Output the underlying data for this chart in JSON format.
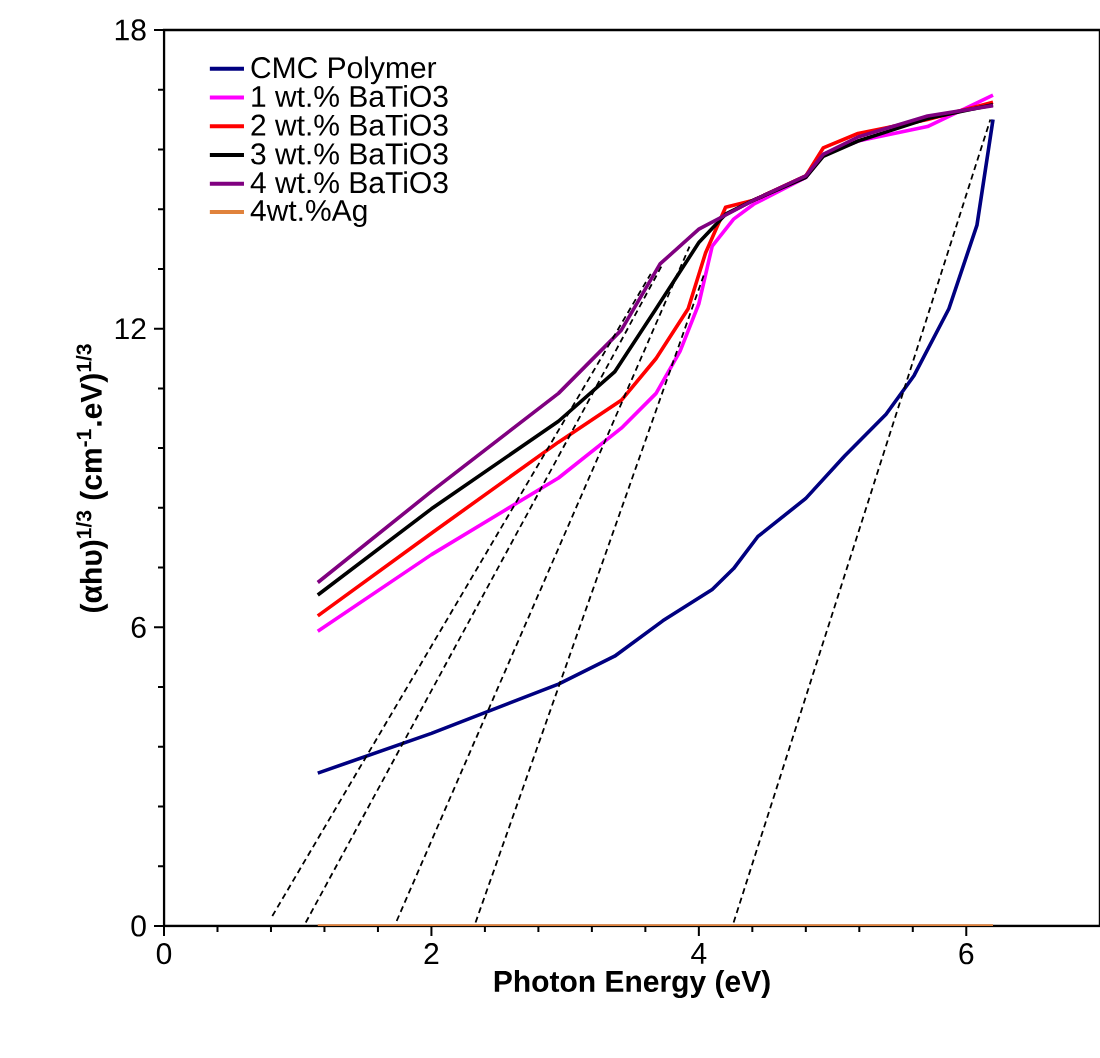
{
  "chart_data": {
    "type": "line",
    "xlabel": "Photon Energy (eV)",
    "ylabel": "(αhυ)$^{1/3}$ (cm$^{-1}$.eV)$^{1/3}$",
    "xlim": [
      0,
      7
    ],
    "ylim": [
      0,
      18
    ],
    "xticks": [
      0,
      2,
      4,
      6
    ],
    "yticks": [
      0,
      6,
      12,
      18
    ],
    "grid": false,
    "legend": "top left",
    "marker": "none",
    "series": [
      {
        "name": "CMC Polymer",
        "color": "#000080",
        "x": [
          1.15,
          2,
          2.95,
          3.37,
          3.73,
          4.1,
          4.26,
          4.44,
          4.8,
          5.09,
          5.4,
          5.61,
          5.87,
          6.08,
          6.2
        ],
        "values": [
          3.07,
          3.87,
          4.86,
          5.42,
          6.13,
          6.76,
          7.18,
          7.82,
          8.59,
          9.44,
          10.28,
          11.06,
          12.4,
          14.08,
          16.2
        ]
      },
      {
        "name": "1 wt.% BaTiO3",
        "color": "#ff00ff",
        "x": [
          1.15,
          2,
          2.95,
          3.42,
          3.68,
          3.86,
          4.0,
          4.1,
          4.26,
          4.41,
          4.8,
          4.93,
          5.19,
          5.71,
          6.2
        ],
        "values": [
          5.92,
          7.46,
          9.0,
          10.0,
          10.7,
          11.55,
          12.5,
          13.66,
          14.2,
          14.5,
          15.04,
          15.5,
          15.77,
          16.06,
          16.69
        ]
      },
      {
        "name": "2 wt.% BaTiO3",
        "color": "#ff0000",
        "x": [
          1.15,
          2,
          2.95,
          3.42,
          3.68,
          3.92,
          4.05,
          4.2,
          4.41,
          4.8,
          4.93,
          5.19,
          5.71,
          6.2
        ],
        "values": [
          6.23,
          7.89,
          9.72,
          10.56,
          11.4,
          12.4,
          13.52,
          14.44,
          14.58,
          15.07,
          15.63,
          15.92,
          16.2,
          16.55
        ]
      },
      {
        "name": "3 wt.% BaTiO3",
        "color": "#000000",
        "x": [
          1.15,
          2,
          2.95,
          3.37,
          3.68,
          4.0,
          4.2,
          4.41,
          4.8,
          4.93,
          5.19,
          5.71,
          6.2
        ],
        "values": [
          6.65,
          8.38,
          10.14,
          11.13,
          12.4,
          13.73,
          14.3,
          14.58,
          15.04,
          15.46,
          15.77,
          16.22,
          16.5
        ]
      },
      {
        "name": "4 wt.% BaTiO3",
        "color": "#800080",
        "x": [
          1.15,
          2,
          2.95,
          3.42,
          3.71,
          4.0,
          4.41,
          4.8,
          4.93,
          5.19,
          5.71,
          6.2
        ],
        "values": [
          6.9,
          8.73,
          10.7,
          11.97,
          13.3,
          14.0,
          14.58,
          15.07,
          15.5,
          15.85,
          16.27,
          16.48
        ]
      },
      {
        "name": "4wt.%Ag",
        "color": "#e0823c",
        "x": [
          1.15,
          6.2
        ],
        "values": [
          0,
          0
        ]
      },
      {
        "color": "#000000",
        "line_style": "dashed",
        "x": [
          0.81,
          3.64
        ],
        "values": [
          0.2,
          13.1
        ]
      },
      {
        "color": "#000000",
        "line_style": "dashed",
        "x": [
          1.06,
          3.72
        ],
        "values": [
          0.07,
          13.25
        ]
      },
      {
        "color": "#000000",
        "line_style": "dashed",
        "x": [
          1.74,
          3.93
        ],
        "values": [
          0.1,
          13.65
        ]
      },
      {
        "color": "#000000",
        "line_style": "dashed",
        "x": [
          2.33,
          4.04
        ],
        "values": [
          0.07,
          13.1
        ]
      },
      {
        "color": "#000000",
        "line_style": "dashed",
        "x": [
          4.26,
          6.18
        ],
        "values": [
          0.07,
          16.2
        ]
      }
    ]
  }
}
